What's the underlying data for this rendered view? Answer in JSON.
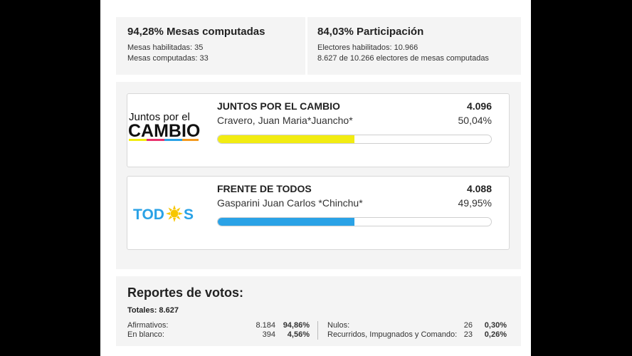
{
  "mesas": {
    "title": "94,28% Mesas computadas",
    "habilitadas": "Mesas habilitadas: 35",
    "computadas": "Mesas computadas: 33"
  },
  "participacion": {
    "title": "84,03% Participación",
    "electores": "Electores habilitados: 10.966",
    "detalle": "8.627 de 10.266 electores de mesas computadas"
  },
  "candidates": [
    {
      "party": "JUNTOS POR EL CAMBIO",
      "name": "Cravero, Juan Maria*Juancho*",
      "votes": "4.096",
      "percent": "50,04%",
      "share": 0.5004,
      "bar_color": "#f2ec12",
      "logo_line1": "Juntos por el",
      "logo_line2": "CAMBIO"
    },
    {
      "party": "FRENTE DE TODOS",
      "name": "Gasparini Juan Carlos *Chinchu*",
      "votes": "4.088",
      "percent": "49,95%",
      "share": 0.4995,
      "bar_color": "#2aa2e6",
      "logo_text_a": "TOD",
      "logo_text_b": "S"
    }
  ],
  "reportes": {
    "title": "Reportes de votos:",
    "totales": "Totales: 8.627",
    "left": [
      {
        "label": "Afirmativos:",
        "value": "8.184",
        "percent": "94,86%"
      },
      {
        "label": "En blanco:",
        "value": "394",
        "percent": "4,56%"
      }
    ],
    "right": [
      {
        "label": "Nulos:",
        "value": "26",
        "percent": "0,30%"
      },
      {
        "label": "Recurridos, Impugnados y Comando:",
        "value": "23",
        "percent": "0,26%"
      }
    ]
  },
  "colors": {
    "jxc_stripe": [
      "#f2ec12",
      "#e8336d",
      "#2aa2e6",
      "#f39a1f"
    ],
    "fdt_blue": "#2aa2e6",
    "fdt_sun": "#f7c600"
  }
}
